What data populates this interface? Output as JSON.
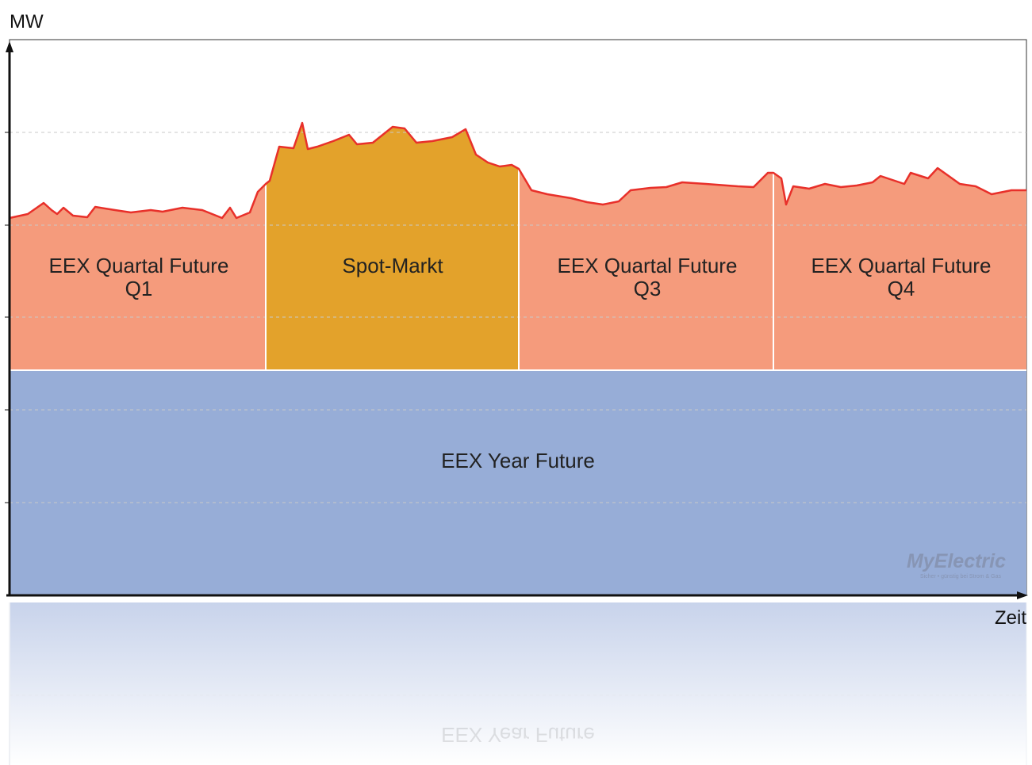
{
  "axis": {
    "y_label": "MW",
    "x_label": "Zeit"
  },
  "segments": [
    {
      "label": "EEX Quartal Future",
      "sub": "Q1"
    },
    {
      "label": "Spot-Markt"
    },
    {
      "label": "EEX Quartal Future",
      "sub": "Q3"
    },
    {
      "label": "EEX Quartal Future",
      "sub": "Q4"
    }
  ],
  "base": {
    "label": "EEX Year Future"
  },
  "logo": {
    "name": "MyElectric",
    "slogan": "Sicher • günstig bei Strom & Gas"
  }
}
